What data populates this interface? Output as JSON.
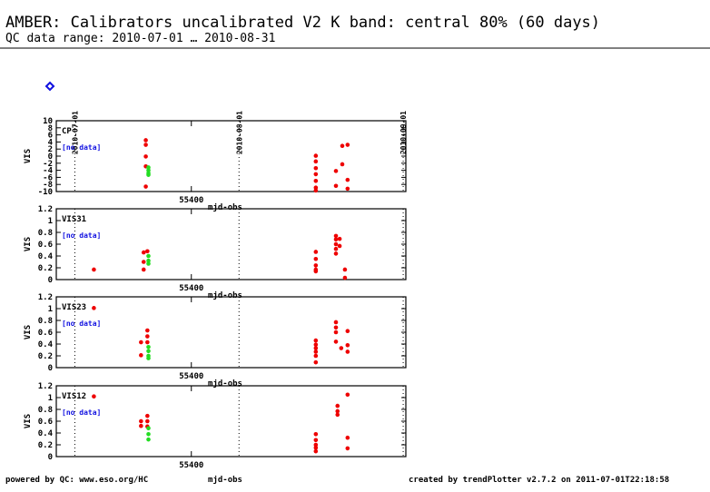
{
  "header": {
    "title": "AMBER: Calibrators uncalibrated V2 K band: central 80% (60 days)",
    "subtitle": "QC data range: 2010-07-01 … 2010-08-31"
  },
  "date_ticks": [
    {
      "value": 55378,
      "label": "2010-07-01"
    },
    {
      "value": 55409,
      "label": "2010-08-01"
    },
    {
      "value": 55440,
      "label": "2010-09-01"
    }
  ],
  "footer": {
    "left": "powered by QC: www.eso.org/HC",
    "right": "created by trendPlotter v2.7.2 on 2011-07-01T22:18:58"
  },
  "chart_data": [
    {
      "type": "scatter",
      "label": "CP",
      "ylabel": "VIS",
      "xlabel": "mjd-obs",
      "note": "[no data]",
      "xlim": [
        55374.5,
        55440.5
      ],
      "xticks": [
        55400
      ],
      "ylim": [
        -10,
        10
      ],
      "yticks": [
        -10,
        -8,
        -6,
        -4,
        -2,
        0,
        2,
        4,
        6,
        8,
        10
      ],
      "series": [
        {
          "color": "#ee0000",
          "x": [
            55391.4,
            55391.4,
            55391.4,
            55391.4,
            55391.4,
            55423.5,
            55423.5,
            55423.5,
            55423.5,
            55423.5,
            55423.5,
            55423.5,
            55427.3,
            55427.3,
            55428.5,
            55428.5,
            55429.5,
            55429.5,
            55429.5
          ],
          "values": [
            4.5,
            3.2,
            -0.1,
            -2.9,
            -8.6,
            0.1,
            -1.5,
            -3.4,
            -5.1,
            -7.0,
            -8.9,
            -9.7,
            -4.2,
            -8.4,
            2.9,
            -2.3,
            3.2,
            -6.7,
            -9.2
          ]
        },
        {
          "color": "#22dd22",
          "x": [
            55391.9,
            55391.9,
            55391.9,
            55391.9
          ],
          "values": [
            -3.2,
            -4.0,
            -4.8,
            -5.3
          ]
        }
      ]
    },
    {
      "type": "scatter",
      "label": "VIS31",
      "ylabel": "VIS",
      "xlabel": "mjd-obs",
      "note": "[no data]",
      "xlim": [
        55374.5,
        55440.5
      ],
      "xticks": [
        55400
      ],
      "ylim": [
        0,
        1.2
      ],
      "yticks": [
        0,
        0.2,
        0.4,
        0.6,
        0.8,
        1,
        1.2
      ],
      "series": [
        {
          "color": "#ee0000",
          "x": [
            55381.6,
            55391.0,
            55391.0,
            55391.0,
            55391.7,
            55423.5,
            55423.5,
            55423.5,
            55423.5,
            55423.5,
            55427.3,
            55427.3,
            55427.3,
            55427.3,
            55427.3,
            55428.0,
            55428.0,
            55429.0,
            55429.0
          ],
          "values": [
            0.17,
            0.46,
            0.3,
            0.17,
            0.48,
            0.47,
            0.35,
            0.24,
            0.17,
            0.14,
            0.74,
            0.68,
            0.6,
            0.52,
            0.44,
            0.69,
            0.57,
            0.17,
            0.03
          ]
        },
        {
          "color": "#22dd22",
          "x": [
            55391.9,
            55391.9,
            55391.9
          ],
          "values": [
            0.4,
            0.32,
            0.27
          ]
        }
      ]
    },
    {
      "type": "scatter",
      "label": "VIS23",
      "ylabel": "VIS",
      "xlabel": "mjd-obs",
      "note": "[no data]",
      "xlim": [
        55374.5,
        55440.5
      ],
      "xticks": [
        55400
      ],
      "ylim": [
        0,
        1.2
      ],
      "yticks": [
        0,
        0.2,
        0.4,
        0.6,
        0.8,
        1,
        1.2
      ],
      "series": [
        {
          "color": "#ee0000",
          "x": [
            55381.6,
            55390.5,
            55390.5,
            55391.7,
            55391.7,
            55391.7,
            55423.5,
            55423.5,
            55423.5,
            55423.5,
            55423.5,
            55423.5,
            55427.3,
            55427.3,
            55427.3,
            55427.3,
            55428.3,
            55429.5,
            55429.5,
            55429.5
          ],
          "values": [
            1.01,
            0.43,
            0.21,
            0.63,
            0.53,
            0.43,
            0.46,
            0.39,
            0.33,
            0.27,
            0.2,
            0.09,
            0.77,
            0.68,
            0.6,
            0.44,
            0.33,
            0.62,
            0.38,
            0.27
          ]
        },
        {
          "color": "#22dd22",
          "x": [
            55391.9,
            55391.9,
            55391.9,
            55391.9
          ],
          "values": [
            0.35,
            0.28,
            0.2,
            0.16
          ]
        }
      ]
    },
    {
      "type": "scatter",
      "label": "VIS12",
      "ylabel": "VIS",
      "xlabel": "mjd-obs",
      "note": "[no data]",
      "xlim": [
        55374.5,
        55440.5
      ],
      "xticks": [
        55400
      ],
      "ylim": [
        0,
        1.2
      ],
      "yticks": [
        0,
        0.2,
        0.4,
        0.6,
        0.8,
        1,
        1.2
      ],
      "series": [
        {
          "color": "#ee0000",
          "x": [
            55381.6,
            55390.5,
            55390.5,
            55391.7,
            55391.7,
            55391.7,
            55423.5,
            55423.5,
            55423.5,
            55423.5,
            55423.5,
            55427.6,
            55427.6,
            55427.6,
            55429.5,
            55429.5,
            55429.5
          ],
          "values": [
            1.02,
            0.6,
            0.52,
            0.69,
            0.6,
            0.51,
            0.38,
            0.28,
            0.2,
            0.15,
            0.09,
            0.86,
            0.77,
            0.71,
            1.05,
            0.32,
            0.14
          ]
        },
        {
          "color": "#22dd22",
          "x": [
            55391.9,
            55391.9,
            55391.9
          ],
          "values": [
            0.48,
            0.38,
            0.29
          ]
        }
      ]
    }
  ]
}
